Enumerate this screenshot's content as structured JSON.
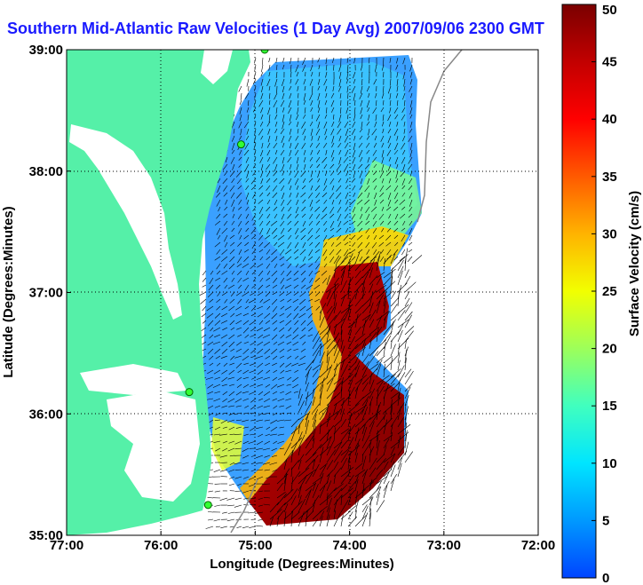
{
  "title": "Southern Mid-Atlantic Raw Velocities (1 Day Avg) 2007/09/06 2300 GMT",
  "x_axis": {
    "label": "Longitude (Degrees:Minutes)",
    "ticks": [
      "77:00",
      "76:00",
      "75:00",
      "74:00",
      "73:00",
      "72:00"
    ]
  },
  "y_axis": {
    "label": "Latitude (Degrees:Minutes)",
    "ticks": [
      "39:00",
      "38:00",
      "37:00",
      "36:00",
      "35:00"
    ]
  },
  "colorbar": {
    "label": "Surface Velocity (cm/s)",
    "ticks": [
      "50",
      "45",
      "40",
      "35",
      "30",
      "25",
      "20",
      "15",
      "10",
      "5",
      "0"
    ],
    "min": 0,
    "max": 50
  },
  "colors": {
    "land": "#55f0a8",
    "ocean_low": "#2f8fff",
    "ocean_mid": "#3cc8ff",
    "jet_high": "#8b0000",
    "title": "#1a1aff"
  },
  "map_extent": {
    "lon": [
      -77,
      -72
    ],
    "lat": [
      35,
      39
    ]
  },
  "stations": [
    {
      "lon": -74.9,
      "lat": 39.0
    },
    {
      "lon": -75.15,
      "lat": 38.22
    },
    {
      "lon": -75.7,
      "lat": 36.18
    },
    {
      "lon": -75.5,
      "lat": 35.25
    }
  ]
}
